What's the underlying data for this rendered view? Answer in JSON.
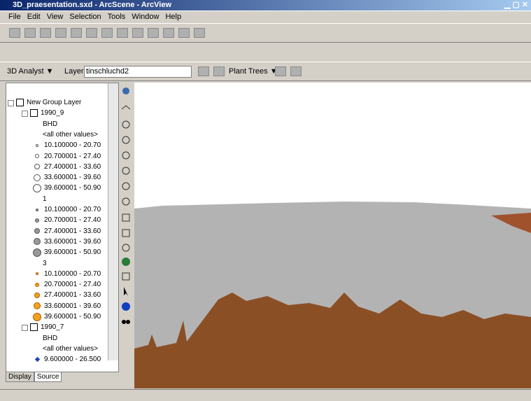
{
  "window": {
    "title": "3D_praesentation.sxd - ArcScene - ArcView"
  },
  "menu": [
    "File",
    "Edit",
    "View",
    "Selection",
    "Tools",
    "Window",
    "Help"
  ],
  "analyst_toolbar": {
    "analyst": "3D Analyst ▼",
    "layer_label": "Layer:",
    "layer": "tinschluchd2",
    "plant_trees": "Plant Trees ▼"
  },
  "toc": {
    "items": [
      "New Group Layer",
      "1990_9",
      "BHD",
      "<all other values>",
      "10.100000 - 20.70",
      "20.700001 - 27.40",
      "27.400001 - 33.60",
      "33.600001 - 39.60",
      "39.600001 - 50.90",
      "1",
      "10.100000 - 20.70",
      "20.700001 - 27.40",
      "27.400001 - 33.60",
      "33.600001 - 39.60",
      "39.600001 - 50.90",
      "3",
      "10.100000 - 20.70",
      "20.700001 - 27.40",
      "27.400001 - 33.60",
      "33.600001 - 39.60",
      "39.600001 - 50.90",
      "1990_7",
      "BHD",
      "<all other values>",
      "9.600000 - 26.500"
    ],
    "tabs": [
      "Display",
      "Source"
    ]
  }
}
